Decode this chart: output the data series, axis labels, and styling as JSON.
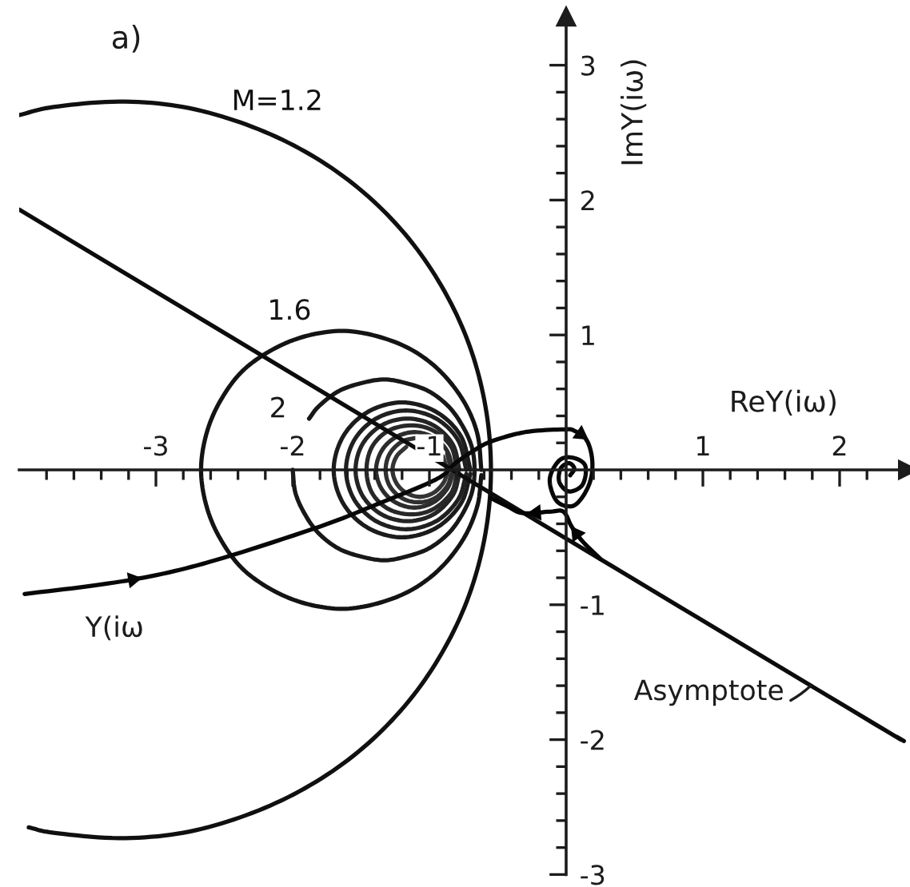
{
  "chart_data": {
    "type": "line",
    "title": "a)",
    "xlabel": "ReY(iω)",
    "ylabel": "ImY(iω)",
    "xlim": [
      -4,
      2.5
    ],
    "ylim": [
      -3,
      3.36
    ],
    "xticks": [
      {
        "value": -3.8,
        "label": null
      },
      {
        "value": -3.6,
        "label": null
      },
      {
        "value": -3.4,
        "label": null
      },
      {
        "value": -3.2,
        "label": null
      },
      -3,
      {
        "value": -2.8,
        "label": null
      },
      {
        "value": -2.6,
        "label": null
      },
      {
        "value": -2.4,
        "label": null
      },
      {
        "value": -2.2,
        "label": null
      },
      -2,
      {
        "value": -1.8,
        "label": null
      },
      {
        "value": -1.6,
        "label": null
      },
      {
        "value": -1.4,
        "label": null
      },
      {
        "value": -1.2,
        "label": null
      },
      -1,
      {
        "value": -0.8,
        "label": null
      },
      {
        "value": -0.6,
        "label": null
      },
      {
        "value": -0.4,
        "label": null
      },
      {
        "value": -0.2,
        "label": null
      },
      {
        "value": 0.2,
        "label": null
      },
      {
        "value": 0.4,
        "label": null
      },
      {
        "value": 0.6,
        "label": null
      },
      {
        "value": 0.8,
        "label": null
      },
      1,
      {
        "value": 1.2,
        "label": null
      },
      {
        "value": 1.4,
        "label": null
      },
      {
        "value": 1.6,
        "label": null
      },
      {
        "value": 1.8,
        "label": null
      },
      2,
      {
        "value": 2.2,
        "label": null
      }
    ],
    "yticks": [
      -3,
      {
        "value": -2.8,
        "label": null
      },
      {
        "value": -2.6,
        "label": null
      },
      {
        "value": -2.4,
        "label": null
      },
      {
        "value": -2.2,
        "label": null
      },
      -2,
      {
        "value": -1.8,
        "label": null
      },
      {
        "value": -1.6,
        "label": null
      },
      {
        "value": -1.4,
        "label": null
      },
      {
        "value": -1.2,
        "label": null
      },
      -1,
      {
        "value": -0.8,
        "label": null
      },
      {
        "value": -0.6,
        "label": null
      },
      {
        "value": -0.4,
        "label": null
      },
      {
        "value": -0.2,
        "label": null
      },
      {
        "value": 0.2,
        "label": null
      },
      {
        "value": 0.4,
        "label": null
      },
      {
        "value": 0.6,
        "label": null
      },
      {
        "value": 0.8,
        "label": null
      },
      1,
      {
        "value": 1.2,
        "label": null
      },
      {
        "value": 1.4,
        "label": null
      },
      {
        "value": 1.6,
        "label": null
      },
      {
        "value": 1.8,
        "label": null
      },
      2,
      {
        "value": 2.2,
        "label": null
      },
      {
        "value": 2.4,
        "label": null
      },
      {
        "value": 2.6,
        "label": null
      },
      {
        "value": 2.8,
        "label": null
      },
      3
    ],
    "series": [
      {
        "name": "M=1.2",
        "color": "#101010",
        "x": [
          -4.0,
          -3.75,
          -3.27,
          -2.8,
          -2.34,
          -1.91,
          -1.52,
          -1.18,
          -0.91,
          -0.71,
          -0.59,
          -0.55,
          -0.59,
          -0.71,
          -0.91,
          -1.18,
          -1.52,
          -1.91,
          -2.34,
          -2.8,
          -3.27,
          -3.75,
          -3.93
        ],
        "values": [
          2.63,
          2.69,
          2.73,
          2.69,
          2.56,
          2.36,
          2.09,
          1.75,
          1.36,
          0.93,
          0.47,
          0,
          -0.47,
          -0.93,
          -1.36,
          -1.75,
          -2.09,
          -2.36,
          -2.56,
          -2.69,
          -2.73,
          -2.69,
          -2.65
        ]
      },
      {
        "name": "1.6",
        "color": "#141414",
        "x": [
          -0.62,
          -0.65,
          -0.75,
          -0.92,
          -1.13,
          -1.38,
          -1.64,
          -1.91,
          -2.15,
          -2.37,
          -2.53,
          -2.63,
          -2.67,
          -2.63,
          -2.53,
          -2.37,
          -2.15,
          -1.91,
          -1.64,
          -1.38,
          -1.13,
          -0.92,
          -0.75,
          -0.65,
          -0.62
        ],
        "values": [
          0,
          0.27,
          0.51,
          0.73,
          0.89,
          0.99,
          1.03,
          0.99,
          0.89,
          0.73,
          0.51,
          0.27,
          0,
          -0.27,
          -0.51,
          -0.73,
          -0.89,
          -0.99,
          -1.03,
          -0.99,
          -0.89,
          -0.73,
          -0.51,
          -0.27,
          -0.04
        ]
      },
      {
        "name": "2",
        "color": "#181818",
        "x": [
          -1.88,
          -1.81,
          -1.67,
          -1.51,
          -1.33,
          -1.16,
          -1.0,
          -0.86,
          -0.76,
          -0.69,
          -0.67,
          -0.69,
          -0.76,
          -0.86,
          -1.0,
          -1.16,
          -1.33,
          -1.51,
          -1.67,
          -1.81,
          -1.91,
          -1.98,
          -2.0
        ],
        "values": [
          0.38,
          0.47,
          0.58,
          0.64,
          0.67,
          0.64,
          0.58,
          0.47,
          0.33,
          0.17,
          0,
          -0.17,
          -0.33,
          -0.47,
          -0.58,
          -0.64,
          -0.67,
          -0.64,
          -0.58,
          -0.47,
          -0.33,
          -0.17,
          0
        ]
      },
      {
        "color": "#1c1c1c",
        "x": [
          -0.7,
          -0.77,
          -0.95,
          -1.2,
          -1.45,
          -1.63,
          -1.7,
          -1.63,
          -1.45,
          -1.2,
          -0.95,
          -0.77,
          -0.7
        ],
        "values": [
          0,
          0.25,
          0.43,
          0.5,
          0.43,
          0.25,
          0,
          -0.25,
          -0.43,
          -0.5,
          -0.43,
          -0.25,
          -0.03
        ]
      },
      {
        "color": "#202020",
        "x": [
          -0.73,
          -0.79,
          -0.95,
          -1.17,
          -1.39,
          -1.55,
          -1.61,
          -1.55,
          -1.39,
          -1.17,
          -0.95,
          -0.79,
          -0.73
        ],
        "values": [
          0,
          0.22,
          0.38,
          0.44,
          0.38,
          0.22,
          0,
          -0.22,
          -0.38,
          -0.44,
          -0.38,
          -0.22,
          -0.03
        ]
      },
      {
        "color": "#242424",
        "x": [
          -0.78,
          -0.83,
          -0.97,
          -1.16,
          -1.35,
          -1.49,
          -1.54,
          -1.49,
          -1.35,
          -1.16,
          -0.97,
          -0.83,
          -0.78
        ],
        "values": [
          0,
          0.19,
          0.33,
          0.38,
          0.33,
          0.19,
          0,
          -0.19,
          -0.33,
          -0.38,
          -0.33,
          -0.19,
          -0.03
        ]
      },
      {
        "color": "#282828",
        "x": [
          -0.8,
          -0.84,
          -0.97,
          -1.13,
          -1.3,
          -1.42,
          -1.46,
          -1.42,
          -1.3,
          -1.13,
          -0.97,
          -0.84,
          -0.8
        ],
        "values": [
          0,
          0.17,
          0.29,
          0.33,
          0.29,
          0.17,
          0,
          -0.17,
          -0.29,
          -0.33,
          -0.29,
          -0.17,
          -0.03
        ]
      },
      {
        "color": "#2c2c2c",
        "x": [
          -0.83,
          -0.87,
          -0.97,
          -1.11,
          -1.25,
          -1.35,
          -1.39,
          -1.35,
          -1.25,
          -1.11,
          -0.97,
          -0.87,
          -0.83
        ],
        "values": [
          0,
          0.14,
          0.24,
          0.28,
          0.24,
          0.14,
          0,
          -0.14,
          -0.24,
          -0.28,
          -0.24,
          -0.14,
          -0.03
        ]
      },
      {
        "color": "#303030",
        "x": [
          -0.84,
          -0.87,
          -0.96,
          -1.08,
          -1.2,
          -1.29,
          -1.32,
          -1.29,
          -1.2,
          -1.08,
          -0.96,
          -0.87,
          -0.84
        ],
        "values": [
          0,
          0.12,
          null,
          0.24,
          0.21,
          0.12,
          0,
          -0.12,
          -0.21,
          -0.24,
          -0.21,
          -0.12,
          -0.03
        ]
      },
      {
        "color": "#343434",
        "x": [
          -0.87,
          -0.9,
          -0.97,
          -1.07,
          -1.17,
          -1.24,
          -1.27,
          -1.24,
          -1.17,
          -1.07,
          -0.97,
          -0.9,
          -0.87
        ],
        "values": [
          0,
          0.1,
          null,
          null,
          0.17,
          0.1,
          0,
          -0.1,
          -0.17,
          -0.2,
          -0.17,
          -0.1,
          -0.03
        ]
      },
      {
        "color": "#0c0c0c",
        "x": [
          -4.0,
          1.79,
          2.47
        ],
        "values": [
          1.93,
          -1.6,
          -2.01
        ]
      },
      {
        "color": "#080808",
        "x": [
          -3.96,
          -3.4,
          -2.95,
          -2.5,
          -1.8,
          -1.42,
          -0.95,
          -0.81,
          -0.68,
          -0.55,
          -0.3,
          -0.02,
          0.06,
          0.15,
          0.19,
          0.18,
          0.12,
          0.04,
          -0.07,
          -0.12,
          -0.05,
          0.05,
          0.14,
          0.12,
          0.02,
          -0.05,
          -0.04,
          0.02,
          0.06,
          0.03
        ],
        "values": [
          -0.92,
          -0.85,
          -0.77,
          -0.65,
          -0.42,
          -0.27,
          -0.07,
          0.05,
          0.14,
          0.21,
          0.28,
          0.3,
          0.29,
          0.22,
          0.08,
          -0.07,
          -0.2,
          -0.27,
          -0.23,
          -0.07,
          0.07,
          0.09,
          0.03,
          -0.11,
          -0.16,
          -0.09,
          0.01,
          0.05,
          0.01,
          -0.04
        ]
      },
      {
        "color": "#040404",
        "x": [
          0.25,
          0.12,
          0.04,
          -0.02,
          -0.12,
          -0.32,
          -0.43,
          -0.55
        ],
        "values": [
          -0.66,
          -0.53,
          -0.42,
          -0.31,
          -0.31,
          -0.32,
          -0.27,
          -0.21
        ]
      }
    ],
    "annotations": [
      {
        "text": "Asymptote",
        "x": 1.79,
        "y": -1.6
      },
      {
        "text": "Y(iω",
        "x": -3.4,
        "y": -0.85
      }
    ]
  }
}
